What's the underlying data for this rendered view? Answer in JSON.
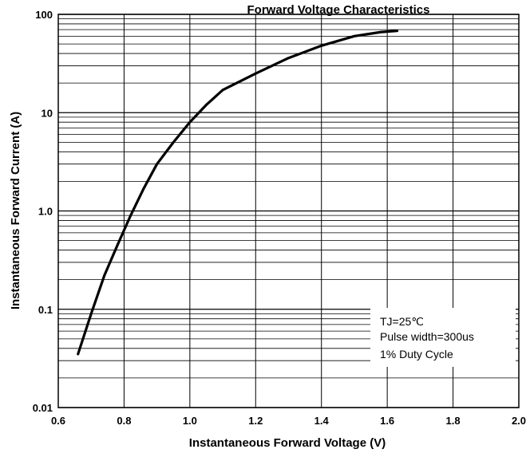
{
  "chart_data": {
    "type": "line",
    "title": "Forward Voltage Characteristics",
    "xlabel": "Instantaneous Forward Voltage (V)",
    "ylabel": "Instantaneous Forward Current (A)",
    "xscale": "linear",
    "yscale": "log",
    "xlim": [
      0.6,
      2.0
    ],
    "ylim": [
      0.01,
      100
    ],
    "grid": true,
    "x_ticks": [
      0.6,
      0.8,
      1.0,
      1.2,
      1.4,
      1.6,
      1.8,
      2.0
    ],
    "x_tick_labels": [
      "0.6",
      "0.8",
      "1.0",
      "1.2",
      "1.4",
      "1.6",
      "1.8",
      "2.0"
    ],
    "y_ticks": [
      0.01,
      0.1,
      1,
      10,
      100
    ],
    "y_tick_labels": [
      "0.01",
      "0.1",
      "1.0",
      "10",
      "100"
    ],
    "series": [
      {
        "x": [
          0.66,
          0.7,
          0.74,
          0.78,
          0.82,
          0.86,
          0.9,
          0.95,
          1.0,
          1.05,
          1.1,
          1.2,
          1.3,
          1.4,
          1.5,
          1.58,
          1.63
        ],
        "y": [
          0.035,
          0.09,
          0.22,
          0.45,
          0.9,
          1.7,
          3.0,
          5.0,
          8.0,
          12,
          17,
          25,
          36,
          48,
          60,
          66,
          68
        ],
        "color": "#000000"
      }
    ],
    "annotations": [
      "TJ=25℃",
      "Pulse width=300us",
      "1% Duty Cycle"
    ]
  }
}
